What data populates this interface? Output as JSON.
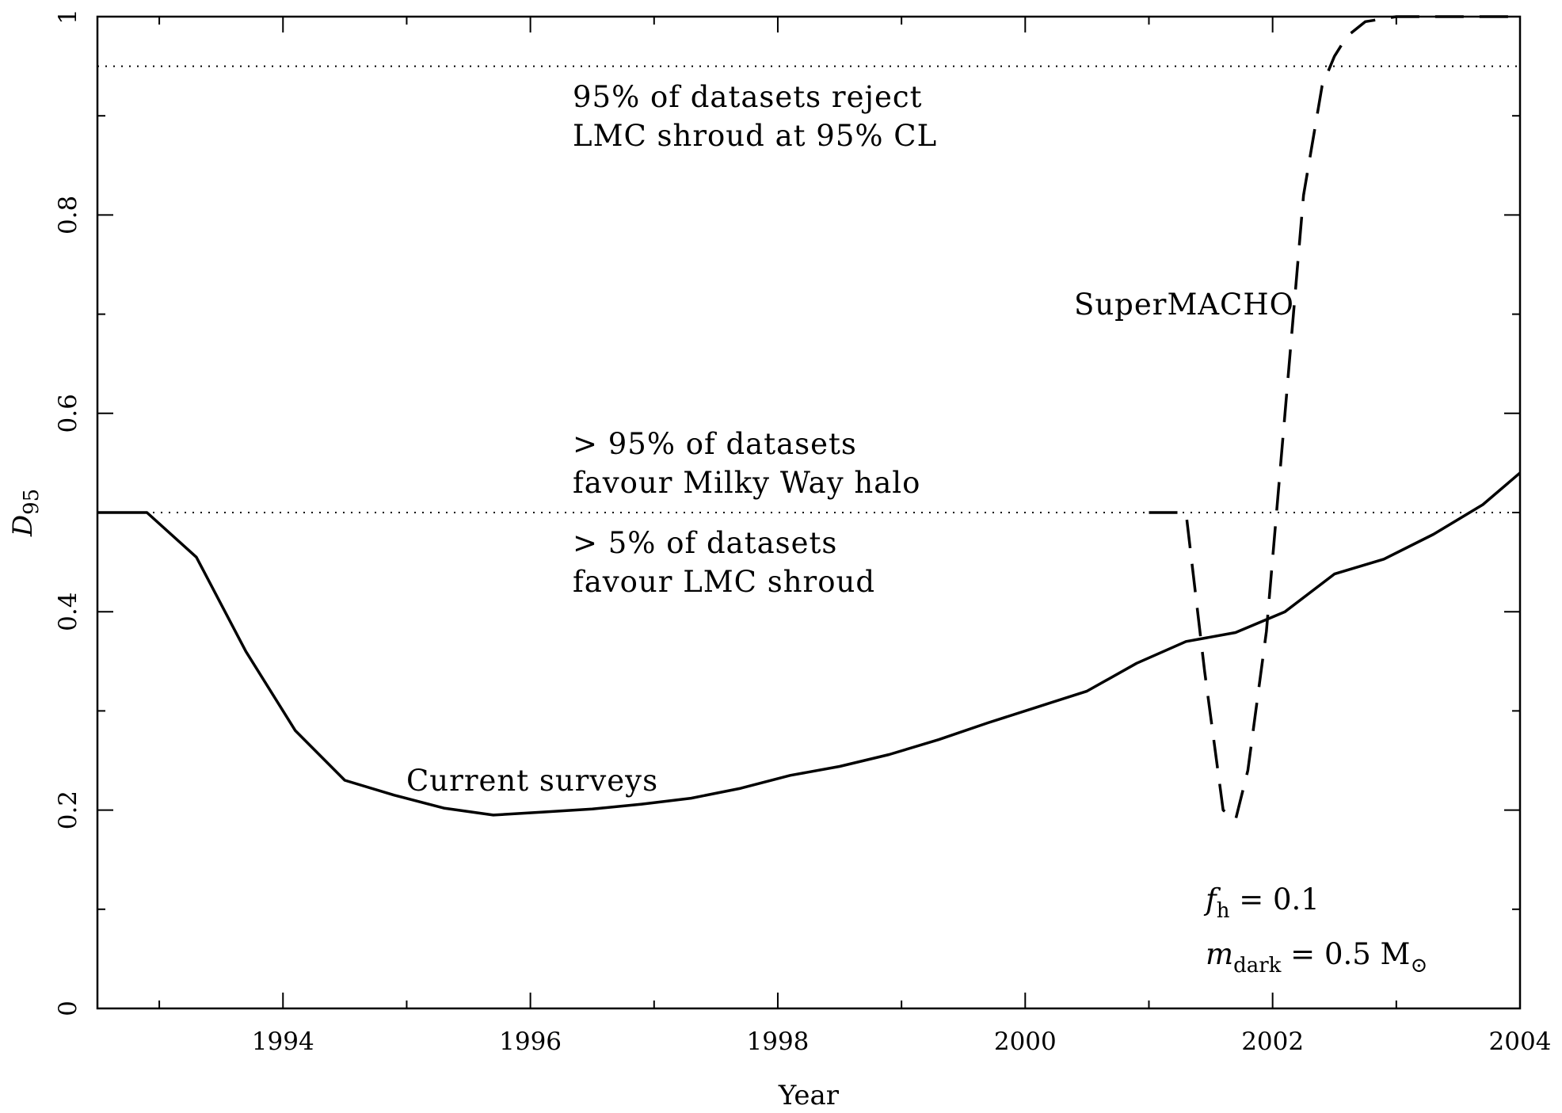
{
  "chart_data": {
    "type": "line",
    "title": "",
    "xlabel": "Year",
    "ylabel": "D",
    "ylabel_sub": "95",
    "xlim": [
      1992.5,
      2004
    ],
    "ylim": [
      0,
      1
    ],
    "x_ticks": [
      1994,
      1996,
      1998,
      2000,
      2002,
      2004
    ],
    "x_tick_labels": [
      "1994",
      "1996",
      "1998",
      "2000",
      "2002",
      "2004"
    ],
    "y_ticks": [
      0,
      0.2,
      0.4,
      0.6,
      0.8,
      1
    ],
    "y_tick_labels": [
      "0",
      "0.2",
      "0.4",
      "0.6",
      "0.8",
      "1"
    ],
    "grid": false,
    "reference_lines": [
      {
        "y": 0.95,
        "style": "dotted"
      },
      {
        "y": 0.5,
        "style": "dotted"
      }
    ],
    "series": [
      {
        "name": "Current surveys",
        "style": "solid",
        "x": [
          1992.5,
          1992.9,
          1993.3,
          1993.7,
          1994.1,
          1994.5,
          1994.9,
          1995.3,
          1995.7,
          1996.1,
          1996.5,
          1996.9,
          1997.3,
          1997.7,
          1998.1,
          1998.5,
          1998.9,
          1999.3,
          1999.7,
          2000.1,
          2000.5,
          2000.9,
          2001.3,
          2001.7,
          2002.1,
          2002.5,
          2002.9,
          2003.3,
          2003.7,
          2004.0
        ],
        "y": [
          0.5,
          0.5,
          0.455,
          0.36,
          0.28,
          0.23,
          0.215,
          0.202,
          0.195,
          0.198,
          0.201,
          0.206,
          0.212,
          0.222,
          0.235,
          0.244,
          0.256,
          0.271,
          0.288,
          0.304,
          0.32,
          0.348,
          0.37,
          0.379,
          0.4,
          0.438,
          0.453,
          0.478,
          0.508,
          0.54
        ]
      },
      {
        "name": "SuperMACHO",
        "style": "dashed",
        "x": [
          2001.0,
          2001.3,
          2001.45,
          2001.6,
          2001.7,
          2001.8,
          2001.95,
          2002.1,
          2002.25,
          2002.4,
          2002.5,
          2002.6,
          2002.75,
          2003.0,
          2003.5,
          2004.0
        ],
        "y": [
          0.5,
          0.5,
          0.34,
          0.2,
          0.19,
          0.24,
          0.38,
          0.6,
          0.82,
          0.93,
          0.96,
          0.98,
          0.995,
          1.0,
          1.0,
          1.0
        ]
      }
    ],
    "annotations": [
      {
        "lines": [
          "95% of datasets reject",
          "LMC shroud at 95% CL"
        ]
      },
      {
        "lines": [
          "> 95% of datasets",
          "favour Milky Way halo"
        ]
      },
      {
        "lines": [
          "> 5% of datasets",
          "favour LMC shroud"
        ]
      }
    ],
    "parameters": [
      {
        "var": "f",
        "sub": "h",
        "value": " = 0.1"
      },
      {
        "var": "m",
        "sub": "dark",
        "value": " = 0.5 M",
        "symbol": "⊙"
      }
    ]
  }
}
